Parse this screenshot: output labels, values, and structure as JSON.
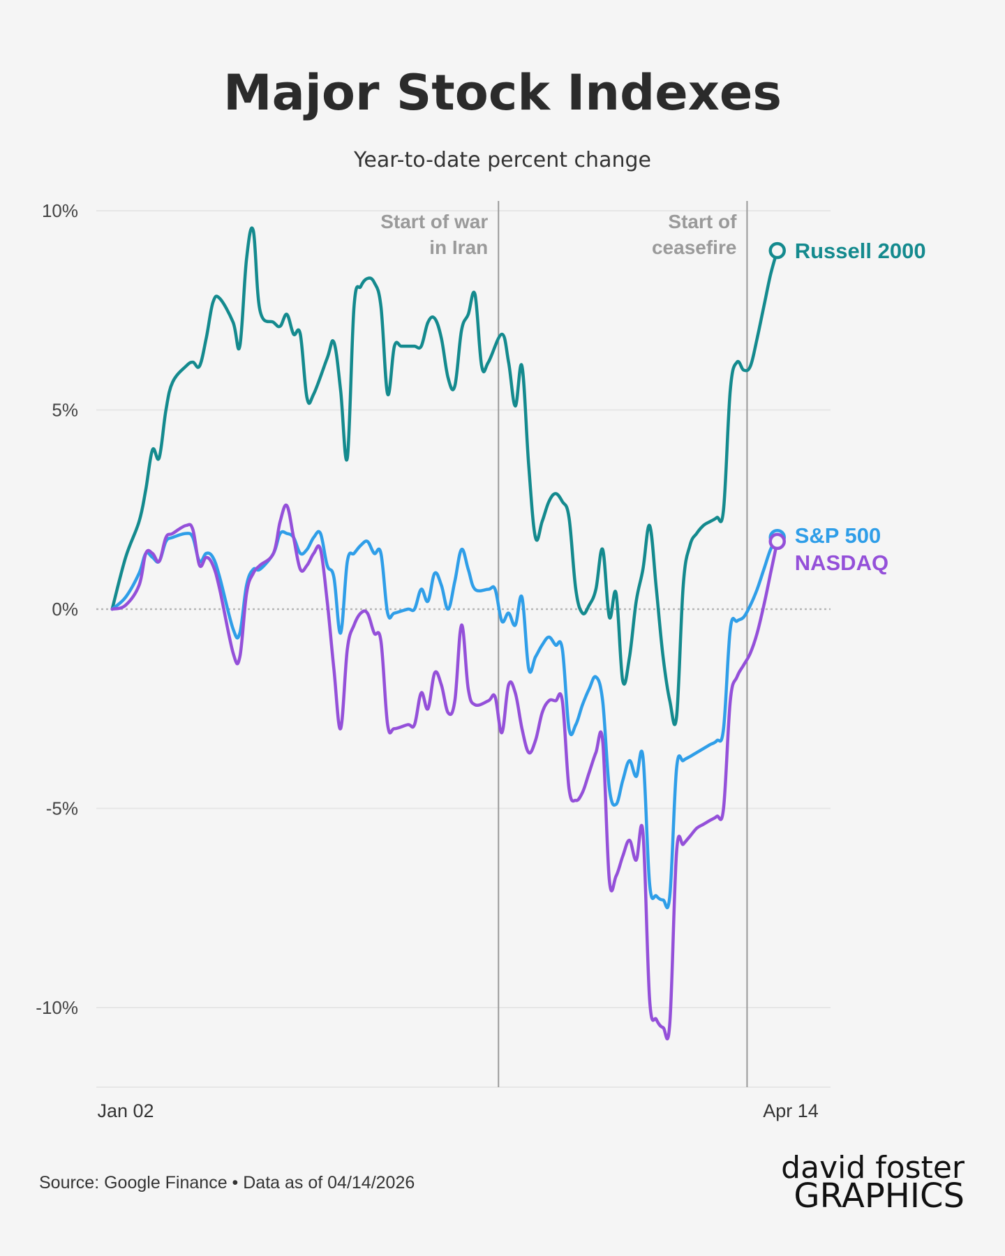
{
  "title": "Major Stock Indexes",
  "subtitle": "Year-to-date percent change",
  "source": "Source: Google Finance • Data as of 04/14/2026",
  "logo": {
    "line1": "david foster",
    "line2": "GRAPHICS"
  },
  "colors": {
    "russell": "#148a8e",
    "sp500": "#2f9ee8",
    "nasdaq": "#9450d9",
    "grid": "#e6e6e6",
    "event_line": "#9a9a9a"
  },
  "chart_data": {
    "type": "line",
    "title": "Major Stock Indexes",
    "subtitle": "Year-to-date percent change",
    "ylim": [
      -12,
      10
    ],
    "y_ticks": [
      {
        "value": 10,
        "label": "10%"
      },
      {
        "value": 5,
        "label": "5%"
      },
      {
        "value": 0,
        "label": "0%"
      },
      {
        "value": -5,
        "label": "-5%"
      },
      {
        "value": -10,
        "label": "-10%"
      }
    ],
    "x_ticks": [
      {
        "value": 1,
        "label": "Jan 02"
      },
      {
        "value": 100,
        "label": "Apr 14"
      }
    ],
    "grid": true,
    "zero_line": "dotted",
    "annotations": [
      {
        "x": 56.5,
        "lines": [
          "Start of war",
          "in Iran"
        ]
      },
      {
        "x": 93.5,
        "lines": [
          "Start of",
          "ceasefire"
        ]
      }
    ],
    "series": [
      {
        "name": "Russell 2000",
        "color": "#148a8e",
        "points": [
          [
            -1,
            0
          ],
          [
            1,
            1.3
          ],
          [
            3,
            2.2
          ],
          [
            4,
            3.0
          ],
          [
            5,
            4.0
          ],
          [
            6,
            3.8
          ],
          [
            7,
            5.0
          ],
          [
            8,
            5.7
          ],
          [
            10,
            6.1
          ],
          [
            11,
            6.2
          ],
          [
            12,
            6.1
          ],
          [
            13,
            6.8
          ],
          [
            14,
            7.7
          ],
          [
            15,
            7.8
          ],
          [
            17,
            7.2
          ],
          [
            18,
            6.6
          ],
          [
            19,
            8.8
          ],
          [
            20,
            9.5
          ],
          [
            21,
            7.5
          ],
          [
            23,
            7.2
          ],
          [
            24,
            7.1
          ],
          [
            25,
            7.4
          ],
          [
            26,
            6.9
          ],
          [
            27,
            6.9
          ],
          [
            28,
            5.3
          ],
          [
            29,
            5.4
          ],
          [
            31,
            6.3
          ],
          [
            32,
            6.7
          ],
          [
            33,
            5.5
          ],
          [
            34,
            3.8
          ],
          [
            35,
            7.6
          ],
          [
            36,
            8.1
          ],
          [
            37,
            8.3
          ],
          [
            38,
            8.2
          ],
          [
            39,
            7.6
          ],
          [
            40,
            5.4
          ],
          [
            41,
            6.6
          ],
          [
            42,
            6.6
          ],
          [
            43,
            6.6
          ],
          [
            44,
            6.6
          ],
          [
            45,
            6.6
          ],
          [
            46,
            7.2
          ],
          [
            47,
            7.3
          ],
          [
            48,
            6.8
          ],
          [
            49,
            5.8
          ],
          [
            50,
            5.6
          ],
          [
            51,
            7.0
          ],
          [
            52,
            7.4
          ],
          [
            53,
            7.9
          ],
          [
            54,
            6.1
          ],
          [
            55,
            6.2
          ],
          [
            57,
            6.9
          ],
          [
            58,
            6.2
          ],
          [
            59,
            5.1
          ],
          [
            60,
            6.1
          ],
          [
            61,
            3.6
          ],
          [
            62,
            1.8
          ],
          [
            63,
            2.2
          ],
          [
            64,
            2.7
          ],
          [
            65,
            2.9
          ],
          [
            66,
            2.7
          ],
          [
            67,
            2.3
          ],
          [
            68,
            0.5
          ],
          [
            69,
            -0.1
          ],
          [
            70,
            0.1
          ],
          [
            71,
            0.5
          ],
          [
            72,
            1.5
          ],
          [
            73,
            -0.2
          ],
          [
            74,
            0.4
          ],
          [
            75,
            -1.8
          ],
          [
            76,
            -1.2
          ],
          [
            77,
            0.2
          ],
          [
            78,
            1.0
          ],
          [
            79,
            2.1
          ],
          [
            80,
            0.5
          ],
          [
            81,
            -1.2
          ],
          [
            82,
            -2.3
          ],
          [
            83,
            -2.7
          ],
          [
            84,
            0.6
          ],
          [
            85,
            1.6
          ],
          [
            86,
            1.9
          ],
          [
            87,
            2.1
          ],
          [
            88,
            2.2
          ],
          [
            89,
            2.3
          ],
          [
            90,
            2.5
          ],
          [
            91,
            5.5
          ],
          [
            92,
            6.2
          ],
          [
            93,
            6.0
          ],
          [
            94,
            6.1
          ],
          [
            95,
            6.8
          ],
          [
            96,
            7.6
          ],
          [
            97,
            8.4
          ],
          [
            98,
            9.0
          ]
        ]
      },
      {
        "name": "S&P 500",
        "color": "#2f9ee8",
        "points": [
          [
            -1,
            0
          ],
          [
            1,
            0.3
          ],
          [
            3,
            0.9
          ],
          [
            4,
            1.4
          ],
          [
            5,
            1.3
          ],
          [
            6,
            1.2
          ],
          [
            7,
            1.7
          ],
          [
            8,
            1.8
          ],
          [
            10,
            1.9
          ],
          [
            11,
            1.8
          ],
          [
            12,
            1.2
          ],
          [
            13,
            1.4
          ],
          [
            14,
            1.3
          ],
          [
            15,
            0.8
          ],
          [
            17,
            -0.5
          ],
          [
            18,
            -0.6
          ],
          [
            19,
            0.6
          ],
          [
            20,
            1.0
          ],
          [
            21,
            1.0
          ],
          [
            23,
            1.4
          ],
          [
            24,
            1.9
          ],
          [
            25,
            1.9
          ],
          [
            26,
            1.8
          ],
          [
            27,
            1.4
          ],
          [
            28,
            1.5
          ],
          [
            29,
            1.8
          ],
          [
            30,
            1.9
          ],
          [
            31,
            1.1
          ],
          [
            32,
            0.8
          ],
          [
            33,
            -0.6
          ],
          [
            34,
            1.2
          ],
          [
            35,
            1.4
          ],
          [
            36,
            1.6
          ],
          [
            37,
            1.7
          ],
          [
            38,
            1.4
          ],
          [
            39,
            1.4
          ],
          [
            40,
            -0.1
          ],
          [
            41,
            -0.1
          ],
          [
            43,
            0
          ],
          [
            44,
            0
          ],
          [
            45,
            0.5
          ],
          [
            46,
            0.2
          ],
          [
            47,
            0.9
          ],
          [
            48,
            0.6
          ],
          [
            49,
            0.0
          ],
          [
            50,
            0.7
          ],
          [
            51,
            1.5
          ],
          [
            52,
            1.0
          ],
          [
            53,
            0.5
          ],
          [
            55,
            0.5
          ],
          [
            56,
            0.5
          ],
          [
            57,
            -0.3
          ],
          [
            58,
            -0.1
          ],
          [
            59,
            -0.4
          ],
          [
            60,
            0.3
          ],
          [
            61,
            -1.5
          ],
          [
            62,
            -1.2
          ],
          [
            63,
            -0.9
          ],
          [
            64,
            -0.7
          ],
          [
            65,
            -0.9
          ],
          [
            66,
            -1.0
          ],
          [
            67,
            -3.0
          ],
          [
            68,
            -2.9
          ],
          [
            69,
            -2.4
          ],
          [
            70,
            -2.0
          ],
          [
            71,
            -1.7
          ],
          [
            72,
            -2.3
          ],
          [
            73,
            -4.5
          ],
          [
            74,
            -4.9
          ],
          [
            75,
            -4.3
          ],
          [
            76,
            -3.8
          ],
          [
            77,
            -4.2
          ],
          [
            78,
            -3.7
          ],
          [
            79,
            -6.9
          ],
          [
            80,
            -7.2
          ],
          [
            81,
            -7.3
          ],
          [
            82,
            -7.2
          ],
          [
            83,
            -4.0
          ],
          [
            84,
            -3.8
          ],
          [
            85,
            -3.7
          ],
          [
            86,
            -3.6
          ],
          [
            87,
            -3.5
          ],
          [
            88,
            -3.4
          ],
          [
            89,
            -3.3
          ],
          [
            90,
            -3.0
          ],
          [
            91,
            -0.5
          ],
          [
            92,
            -0.3
          ],
          [
            93,
            -0.2
          ],
          [
            94,
            0.1
          ],
          [
            95,
            0.5
          ],
          [
            96,
            1.0
          ],
          [
            97,
            1.5
          ],
          [
            98,
            1.8
          ]
        ]
      },
      {
        "name": "NASDAQ",
        "color": "#9450d9",
        "points": [
          [
            -1,
            0
          ],
          [
            1,
            0.1
          ],
          [
            3,
            0.6
          ],
          [
            4,
            1.4
          ],
          [
            5,
            1.4
          ],
          [
            6,
            1.2
          ],
          [
            7,
            1.8
          ],
          [
            8,
            1.9
          ],
          [
            10,
            2.1
          ],
          [
            11,
            2.0
          ],
          [
            12,
            1.1
          ],
          [
            13,
            1.3
          ],
          [
            14,
            1.1
          ],
          [
            15,
            0.5
          ],
          [
            17,
            -1.1
          ],
          [
            18,
            -1.2
          ],
          [
            19,
            0.4
          ],
          [
            20,
            0.9
          ],
          [
            21,
            1.1
          ],
          [
            23,
            1.4
          ],
          [
            24,
            2.2
          ],
          [
            25,
            2.6
          ],
          [
            26,
            1.8
          ],
          [
            27,
            1.0
          ],
          [
            28,
            1.1
          ],
          [
            29,
            1.4
          ],
          [
            30,
            1.5
          ],
          [
            31,
            0.2
          ],
          [
            32,
            -1.5
          ],
          [
            33,
            -3.0
          ],
          [
            34,
            -1.0
          ],
          [
            35,
            -0.4
          ],
          [
            36,
            -0.1
          ],
          [
            37,
            -0.1
          ],
          [
            38,
            -0.6
          ],
          [
            39,
            -0.8
          ],
          [
            40,
            -2.9
          ],
          [
            41,
            -3.0
          ],
          [
            43,
            -2.9
          ],
          [
            44,
            -2.9
          ],
          [
            45,
            -2.1
          ],
          [
            46,
            -2.5
          ],
          [
            47,
            -1.6
          ],
          [
            48,
            -1.9
          ],
          [
            49,
            -2.6
          ],
          [
            50,
            -2.3
          ],
          [
            51,
            -0.4
          ],
          [
            52,
            -2.0
          ],
          [
            53,
            -2.4
          ],
          [
            55,
            -2.3
          ],
          [
            56,
            -2.2
          ],
          [
            57,
            -3.1
          ],
          [
            58,
            -1.9
          ],
          [
            59,
            -2.1
          ],
          [
            60,
            -3.0
          ],
          [
            61,
            -3.6
          ],
          [
            62,
            -3.3
          ],
          [
            63,
            -2.6
          ],
          [
            64,
            -2.3
          ],
          [
            65,
            -2.3
          ],
          [
            66,
            -2.3
          ],
          [
            67,
            -4.5
          ],
          [
            68,
            -4.8
          ],
          [
            69,
            -4.6
          ],
          [
            70,
            -4.1
          ],
          [
            71,
            -3.6
          ],
          [
            72,
            -3.3
          ],
          [
            73,
            -6.8
          ],
          [
            74,
            -6.7
          ],
          [
            75,
            -6.2
          ],
          [
            76,
            -5.8
          ],
          [
            77,
            -6.3
          ],
          [
            78,
            -5.6
          ],
          [
            79,
            -9.8
          ],
          [
            80,
            -10.3
          ],
          [
            81,
            -10.5
          ],
          [
            82,
            -10.4
          ],
          [
            83,
            -6.1
          ],
          [
            84,
            -5.9
          ],
          [
            85,
            -5.7
          ],
          [
            86,
            -5.5
          ],
          [
            87,
            -5.4
          ],
          [
            88,
            -5.3
          ],
          [
            89,
            -5.2
          ],
          [
            90,
            -5.0
          ],
          [
            91,
            -2.3
          ],
          [
            92,
            -1.7
          ],
          [
            93,
            -1.4
          ],
          [
            94,
            -1.1
          ],
          [
            95,
            -0.6
          ],
          [
            96,
            0.1
          ],
          [
            97,
            0.9
          ],
          [
            98,
            1.7
          ]
        ]
      }
    ]
  }
}
